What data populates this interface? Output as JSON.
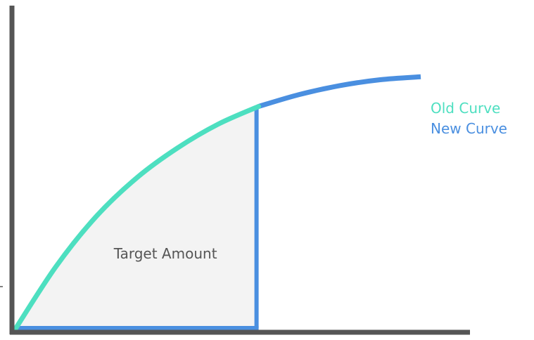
{
  "chart_data": {
    "type": "line",
    "title": "",
    "xlabel": "",
    "ylabel": "",
    "xlim": [
      0,
      100
    ],
    "ylim": [
      0,
      100
    ],
    "grid": false,
    "legend_placement": "right",
    "series": [
      {
        "name": "Old Curve",
        "color": "#4ddfc0",
        "x": [
          0,
          10,
          20,
          30,
          40,
          50,
          60
        ],
        "y": [
          0,
          21,
          38,
          51,
          61,
          69,
          75
        ]
      },
      {
        "name": "New Curve",
        "color": "#4a8fe0",
        "x": [
          60,
          70,
          80,
          90,
          100
        ],
        "y": [
          75,
          79,
          82,
          84,
          85
        ]
      }
    ],
    "cutoff_x": 60,
    "annotations": [
      {
        "text": "Target Amount",
        "x": 37,
        "y": 25
      }
    ],
    "colors": {
      "axis": "#555555",
      "area_fill": "#f3f3f3"
    }
  }
}
